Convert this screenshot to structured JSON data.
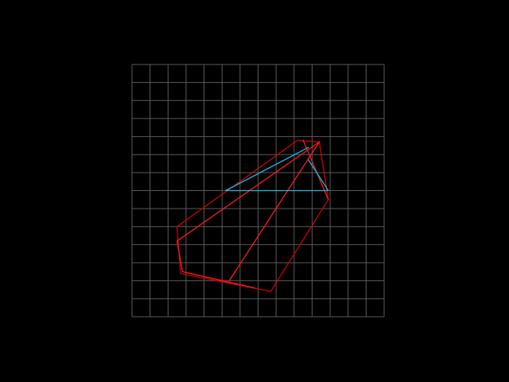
{
  "diagram": {
    "background_color": "#000000",
    "grid": {
      "columns": 14,
      "rows": 14,
      "color": "#5a5a5a"
    },
    "colors": {
      "red_dark": "#cc0000",
      "red_bright": "#ff1a1a",
      "cyan": "#1ab8e0"
    },
    "segments": [
      {
        "name": "hull-edge-top-left",
        "color": "red_dark",
        "from": [
          9.2,
          4.2
        ],
        "to": [
          2.5,
          9.0
        ]
      },
      {
        "name": "hull-edge-left",
        "color": "red_dark",
        "from": [
          2.5,
          9.0
        ],
        "to": [
          2.7,
          11.6
        ]
      },
      {
        "name": "hull-edge-bottom",
        "color": "red_dark",
        "from": [
          2.7,
          11.6
        ],
        "to": [
          7.7,
          12.6
        ]
      },
      {
        "name": "hull-edge-bottom-right",
        "color": "red_dark",
        "from": [
          7.7,
          12.6
        ],
        "to": [
          10.9,
          7.5
        ]
      },
      {
        "name": "hull-edge-right",
        "color": "red_dark",
        "from": [
          10.9,
          7.5
        ],
        "to": [
          10.4,
          4.3
        ]
      },
      {
        "name": "hull-edge-top",
        "color": "red_dark",
        "from": [
          10.4,
          4.3
        ],
        "to": [
          9.2,
          4.2
        ]
      },
      {
        "name": "inner-edge-a",
        "color": "red_bright",
        "from": [
          10.4,
          4.3
        ],
        "to": [
          2.5,
          9.8
        ]
      },
      {
        "name": "inner-edge-b",
        "color": "red_bright",
        "from": [
          2.5,
          9.8
        ],
        "to": [
          2.8,
          11.5
        ]
      },
      {
        "name": "inner-edge-c",
        "color": "red_bright",
        "from": [
          2.8,
          11.5
        ],
        "to": [
          6.8,
          12.4
        ]
      },
      {
        "name": "inner-edge-d",
        "color": "red_bright",
        "from": [
          5.4,
          12.0
        ],
        "to": [
          10.4,
          4.3
        ]
      },
      {
        "name": "inner-edge-e",
        "color": "red_bright",
        "from": [
          9.5,
          4.2
        ],
        "to": [
          10.9,
          7.5
        ]
      },
      {
        "name": "cyan-edge-base",
        "color": "cyan",
        "from": [
          5.2,
          7.0
        ],
        "to": [
          10.9,
          7.0
        ]
      },
      {
        "name": "cyan-edge-upper",
        "color": "cyan",
        "from": [
          5.2,
          7.0
        ],
        "to": [
          9.8,
          4.6
        ]
      },
      {
        "name": "cyan-edge-right",
        "color": "cyan",
        "from": [
          9.8,
          5.3
        ],
        "to": [
          10.9,
          7.0
        ]
      }
    ]
  }
}
